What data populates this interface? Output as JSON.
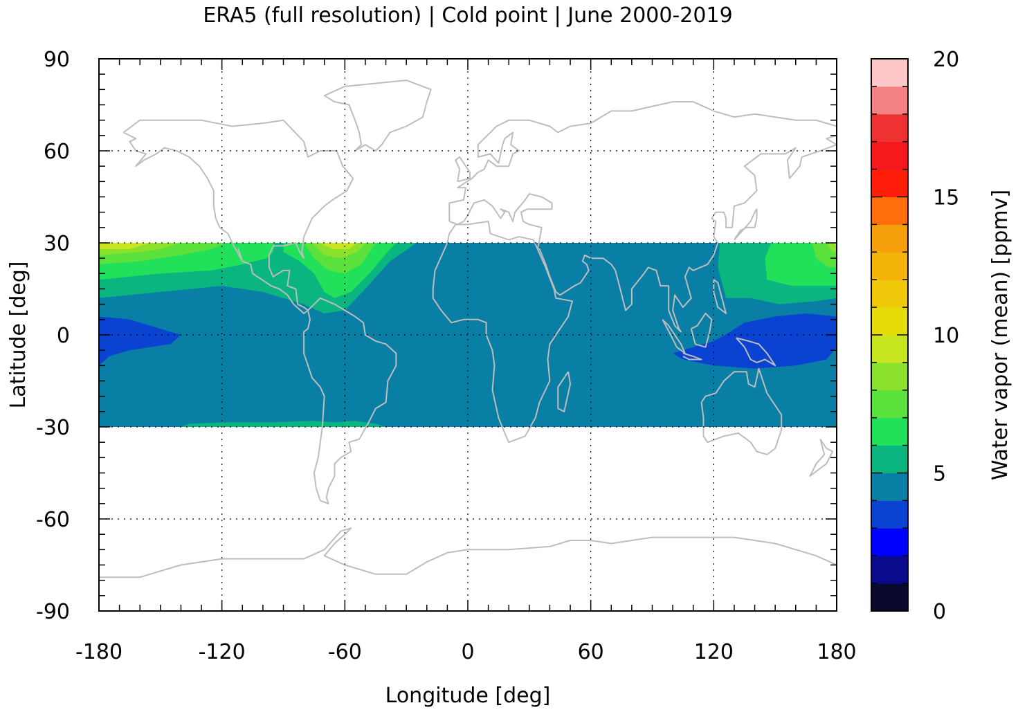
{
  "chart_data": {
    "type": "heatmap",
    "title": "ERA5 (full resolution) | Cold point | June 2000-2019",
    "xlabel": "Longitude [deg]",
    "ylabel": "Latitude [deg]",
    "colorbar_label": "Water vapor (mean) [ppmv]",
    "xlim": [
      -180,
      180
    ],
    "ylim": [
      -90,
      90
    ],
    "x_ticks": [
      -180,
      -120,
      -60,
      0,
      60,
      120,
      180
    ],
    "x_tick_labels": [
      "-180",
      "-120",
      "-60",
      "0",
      "60",
      "120",
      "180"
    ],
    "y_ticks": [
      -90,
      -60,
      -30,
      0,
      30,
      60,
      90
    ],
    "y_tick_labels": [
      "-90",
      "-60",
      "-30",
      "0",
      "30",
      "60",
      "90"
    ],
    "grid": true,
    "data_lat_range": [
      -30,
      30
    ],
    "colorbar_range": [
      0,
      20
    ],
    "colorbar_ticks": [
      0,
      5,
      10,
      15,
      20
    ],
    "colorbar_tick_labels": [
      "0",
      "5",
      "10",
      "15",
      "20"
    ],
    "colorbar_levels": [
      {
        "min": 0,
        "max": 1,
        "color": "#0a0a2e"
      },
      {
        "min": 1,
        "max": 2,
        "color": "#0a0a8c"
      },
      {
        "min": 2,
        "max": 3,
        "color": "#0000ff"
      },
      {
        "min": 3,
        "max": 4,
        "color": "#0a42d2"
      },
      {
        "min": 4,
        "max": 5,
        "color": "#0a7fa6"
      },
      {
        "min": 5,
        "max": 6,
        "color": "#0ab57f"
      },
      {
        "min": 6,
        "max": 7,
        "color": "#21e15a"
      },
      {
        "min": 7,
        "max": 8,
        "color": "#5ae13c"
      },
      {
        "min": 8,
        "max": 9,
        "color": "#8ce12d"
      },
      {
        "min": 9,
        "max": 10,
        "color": "#c8e61e"
      },
      {
        "min": 10,
        "max": 11,
        "color": "#e6dc0a"
      },
      {
        "min": 11,
        "max": 12,
        "color": "#f0c80a"
      },
      {
        "min": 12,
        "max": 13,
        "color": "#f5b40a"
      },
      {
        "min": 13,
        "max": 14,
        "color": "#f5a00a"
      },
      {
        "min": 14,
        "max": 15,
        "color": "#ff6e0a"
      },
      {
        "min": 15,
        "max": 16,
        "color": "#ff1e0a"
      },
      {
        "min": 16,
        "max": 17,
        "color": "#f5191e"
      },
      {
        "min": 17,
        "max": 18,
        "color": "#ee3232"
      },
      {
        "min": 18,
        "max": 19,
        "color": "#f58282"
      },
      {
        "min": 19,
        "max": 20,
        "color": "#ffc8c8"
      }
    ],
    "background_level_ppmv": 4.5,
    "regions": [
      {
        "level_ppmv": 5.5,
        "polygon": [
          [
            -180,
            30
          ],
          [
            -180,
            12
          ],
          [
            -150,
            14
          ],
          [
            -120,
            16
          ],
          [
            -100,
            14
          ],
          [
            -80,
            10
          ],
          [
            -70,
            7
          ],
          [
            -60,
            8
          ],
          [
            -50,
            15
          ],
          [
            -38,
            24
          ],
          [
            -25,
            30
          ]
        ]
      },
      {
        "level_ppmv": 6.5,
        "polygon": [
          [
            -180,
            30
          ],
          [
            -180,
            18
          ],
          [
            -150,
            20
          ],
          [
            -125,
            21
          ],
          [
            -110,
            23
          ],
          [
            -98,
            25
          ],
          [
            -95,
            27
          ],
          [
            -94,
            30
          ]
        ]
      },
      {
        "level_ppmv": 6.5,
        "polygon": [
          [
            -90,
            30
          ],
          [
            -90,
            27
          ],
          [
            -82,
            24
          ],
          [
            -75,
            20
          ],
          [
            -70,
            14
          ],
          [
            -65,
            12
          ],
          [
            -57,
            14
          ],
          [
            -48,
            20
          ],
          [
            -38,
            28
          ],
          [
            -35,
            30
          ]
        ]
      },
      {
        "level_ppmv": 7.5,
        "polygon": [
          [
            -180,
            30
          ],
          [
            -180,
            23
          ],
          [
            -160,
            24
          ],
          [
            -140,
            26
          ],
          [
            -125,
            28
          ],
          [
            -118,
            30
          ]
        ]
      },
      {
        "level_ppmv": 7.5,
        "polygon": [
          [
            -80,
            30
          ],
          [
            -75,
            25
          ],
          [
            -68,
            21
          ],
          [
            -60,
            20
          ],
          [
            -52,
            23
          ],
          [
            -45,
            30
          ]
        ]
      },
      {
        "level_ppmv": 8.5,
        "polygon": [
          [
            -180,
            30
          ],
          [
            -180,
            26
          ],
          [
            -160,
            27
          ],
          [
            -150,
            28
          ],
          [
            -140,
            30
          ]
        ]
      },
      {
        "level_ppmv": 8.5,
        "polygon": [
          [
            -76,
            30
          ],
          [
            -70,
            26
          ],
          [
            -62,
            25
          ],
          [
            -54,
            27
          ],
          [
            -50,
            30
          ]
        ]
      },
      {
        "level_ppmv": 9.5,
        "polygon": [
          [
            -180,
            30
          ],
          [
            -180,
            28
          ],
          [
            -165,
            28
          ],
          [
            -155,
            30
          ]
        ]
      },
      {
        "level_ppmv": 9.5,
        "polygon": [
          [
            -72,
            30
          ],
          [
            -66,
            28
          ],
          [
            -58,
            28
          ],
          [
            -54,
            30
          ]
        ]
      },
      {
        "level_ppmv": 5.5,
        "polygon": [
          [
            123,
            30
          ],
          [
            122,
            22
          ],
          [
            126,
            12
          ],
          [
            138,
            12
          ],
          [
            152,
            10
          ],
          [
            170,
            11
          ],
          [
            180,
            12
          ],
          [
            180,
            30
          ]
        ]
      },
      {
        "level_ppmv": 6.5,
        "polygon": [
          [
            148,
            30
          ],
          [
            145,
            25
          ],
          [
            146,
            18
          ],
          [
            158,
            16
          ],
          [
            170,
            16
          ],
          [
            180,
            16
          ],
          [
            180,
            30
          ]
        ]
      },
      {
        "level_ppmv": 7.5,
        "polygon": [
          [
            168,
            30
          ],
          [
            170,
            25
          ],
          [
            176,
            22
          ],
          [
            180,
            22
          ],
          [
            180,
            30
          ]
        ]
      },
      {
        "level_ppmv": 8.5,
        "polygon": [
          [
            175,
            30
          ],
          [
            178,
            27
          ],
          [
            180,
            27
          ],
          [
            180,
            30
          ]
        ]
      },
      {
        "level_ppmv": 9.5,
        "polygon": [
          [
            178,
            30
          ],
          [
            180,
            29
          ],
          [
            180,
            30
          ]
        ]
      },
      {
        "level_ppmv": 5.5,
        "polygon": [
          [
            -140,
            -30
          ],
          [
            -136,
            -29
          ],
          [
            -120,
            -28.5
          ],
          [
            -95,
            -28.5
          ],
          [
            -75,
            -28
          ],
          [
            -65,
            -28.5
          ],
          [
            -55,
            -28
          ],
          [
            -45,
            -29
          ],
          [
            -40,
            -30
          ]
        ]
      },
      {
        "level_ppmv": 3.5,
        "polygon": [
          [
            -180,
            6
          ],
          [
            -165,
            5
          ],
          [
            -150,
            2
          ],
          [
            -140,
            0
          ],
          [
            -145,
            -3
          ],
          [
            -165,
            -5
          ],
          [
            -175,
            -7
          ],
          [
            -180,
            -10
          ]
        ]
      },
      {
        "level_ppmv": 3.5,
        "polygon": [
          [
            180,
            6
          ],
          [
            165,
            7
          ],
          [
            150,
            6
          ],
          [
            135,
            4
          ],
          [
            128,
            1
          ],
          [
            120,
            -2
          ],
          [
            110,
            -4
          ],
          [
            100,
            -6
          ],
          [
            105,
            -8
          ],
          [
            120,
            -10
          ],
          [
            140,
            -11
          ],
          [
            160,
            -10
          ],
          [
            175,
            -8
          ],
          [
            180,
            -4
          ]
        ]
      }
    ]
  }
}
